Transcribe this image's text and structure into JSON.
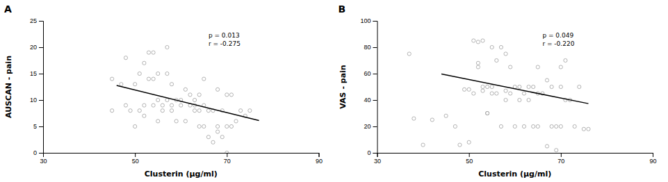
{
  "chart_data": [
    {
      "type": "scatter",
      "title": "A",
      "x_label": "Clusterin (μg/ml)",
      "y_label": "AUSCAN - pain",
      "xlim": [
        30,
        90
      ],
      "ylim": [
        0,
        25
      ],
      "xticks": [
        30,
        50,
        70,
        90
      ],
      "yticks": [
        0,
        5,
        10,
        15,
        20,
        25
      ],
      "annotations": [
        "p = 0.013",
        "r = -0.275"
      ],
      "series": [
        {
          "type": "scatter",
          "color": "#aaaaaa",
          "marker": "circle-open",
          "x": [
            45,
            45,
            47,
            48,
            48,
            49,
            50,
            50,
            51,
            51,
            52,
            52,
            52,
            53,
            53,
            54,
            54,
            54,
            55,
            55,
            55,
            56,
            56,
            57,
            57,
            57,
            58,
            58,
            58,
            59,
            59,
            60,
            60,
            61,
            61,
            62,
            62,
            63,
            63,
            63,
            64,
            64,
            64,
            65,
            65,
            65,
            66,
            66,
            67,
            67,
            68,
            68,
            68,
            69,
            69,
            70,
            70,
            70,
            71,
            71,
            72,
            73,
            74,
            75
          ],
          "values": [
            8,
            14,
            13,
            9,
            18,
            8,
            5,
            13,
            15,
            8,
            7,
            9,
            17,
            19,
            14,
            9,
            14,
            19,
            6,
            10,
            15,
            8,
            9,
            10,
            15,
            20,
            8,
            9,
            13,
            6,
            10,
            9,
            10,
            6,
            12,
            9,
            11,
            8,
            9,
            10,
            5,
            8,
            11,
            5,
            9,
            14,
            3,
            8,
            2,
            8,
            4,
            5,
            12,
            3,
            8,
            0,
            5,
            11,
            5,
            11,
            6,
            8,
            7,
            8
          ]
        },
        {
          "type": "line",
          "color": "#000000",
          "line_style": "solid",
          "x": [
            46,
            77
          ],
          "values": [
            12.756,
            6.122
          ]
        }
      ]
    },
    {
      "type": "scatter",
      "title": "B",
      "x_label": "Clusterin (μg/ml)",
      "y_label": "VAS - pain",
      "xlim": [
        30,
        90
      ],
      "ylim": [
        0,
        100
      ],
      "xticks": [
        30,
        50,
        70,
        90
      ],
      "yticks": [
        0,
        20,
        40,
        60,
        80,
        100
      ],
      "annotations": [
        "p = 0.049",
        "r = -0.220"
      ],
      "series": [
        {
          "type": "scatter",
          "color": "#aaaaaa",
          "marker": "circle-open",
          "x": [
            37,
            38,
            40,
            42,
            45,
            47,
            48,
            49,
            50,
            50,
            51,
            51,
            52,
            52,
            52,
            53,
            53,
            53,
            54,
            54,
            54,
            55,
            55,
            55,
            56,
            56,
            57,
            57,
            58,
            58,
            58,
            59,
            59,
            60,
            60,
            61,
            61,
            62,
            62,
            63,
            63,
            64,
            64,
            65,
            65,
            65,
            66,
            67,
            67,
            68,
            68,
            69,
            69,
            70,
            70,
            70,
            71,
            71,
            72,
            73,
            74,
            75,
            76
          ],
          "values": [
            75,
            26,
            6,
            25,
            28,
            20,
            6,
            48,
            48,
            8,
            45,
            85,
            65,
            68,
            84,
            47,
            50,
            85,
            30,
            30,
            50,
            45,
            50,
            80,
            45,
            70,
            20,
            80,
            40,
            47,
            75,
            45,
            65,
            20,
            50,
            40,
            50,
            20,
            45,
            40,
            50,
            20,
            50,
            20,
            45,
            65,
            45,
            55,
            5,
            20,
            50,
            2,
            20,
            20,
            50,
            65,
            40,
            70,
            40,
            20,
            50,
            18,
            18
          ]
        },
        {
          "type": "line",
          "color": "#000000",
          "line_style": "solid",
          "x": [
            44,
            76
          ],
          "values": [
            59.7,
            37.3
          ]
        }
      ]
    }
  ]
}
